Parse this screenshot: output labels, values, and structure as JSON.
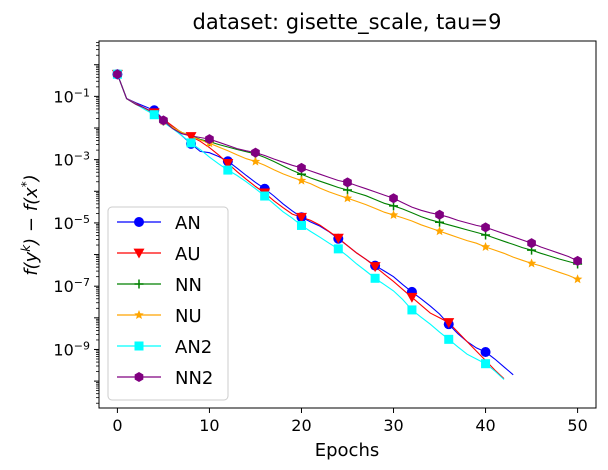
{
  "chart_data": {
    "type": "line",
    "title": "dataset: gisette_scale, tau=9",
    "xlabel": "Epochs",
    "ylabel_parts": [
      "f(y",
      "k",
      ") − f(x",
      "*",
      ")"
    ],
    "xlim": [
      -2,
      52
    ],
    "ylim_exp": [
      -10.85,
      0.75
    ],
    "yscale": "log",
    "x_ticks": [
      0,
      10,
      20,
      30,
      40,
      50
    ],
    "y_ticks": [
      {
        "exp": -1,
        "base": "10",
        "sup": "−1"
      },
      {
        "exp": -3,
        "base": "10",
        "sup": "−3"
      },
      {
        "exp": -5,
        "base": "10",
        "sup": "−5"
      },
      {
        "exp": -7,
        "base": "10",
        "sup": "−7"
      },
      {
        "exp": -9,
        "base": "10",
        "sup": "−9"
      }
    ],
    "legend_position": "lower-left",
    "series": [
      {
        "name": "AN",
        "color": "#0000ff",
        "marker": "circle",
        "x": [
          0,
          1,
          2,
          3,
          4,
          5,
          6,
          7,
          8,
          9,
          10,
          11,
          12,
          13,
          14,
          15,
          16,
          17,
          18,
          19,
          20,
          21,
          22,
          23,
          24,
          25,
          26,
          27,
          28,
          29,
          30,
          31,
          32,
          33,
          34,
          35,
          36,
          37,
          38,
          39,
          40,
          41,
          42,
          43
        ],
        "y_exp": [
          -0.3,
          -1.07,
          -1.2,
          -1.32,
          -1.44,
          -1.72,
          -1.98,
          -2.24,
          -2.5,
          -2.74,
          -2.78,
          -2.9,
          -3.05,
          -3.27,
          -3.5,
          -3.72,
          -3.92,
          -4.15,
          -4.4,
          -4.62,
          -4.82,
          -4.97,
          -5.1,
          -5.28,
          -5.5,
          -5.72,
          -5.95,
          -6.15,
          -6.35,
          -6.52,
          -6.7,
          -6.95,
          -7.18,
          -7.4,
          -7.63,
          -7.88,
          -8.2,
          -8.5,
          -8.75,
          -8.95,
          -9.08,
          -9.3,
          -9.55,
          -9.8
        ],
        "markers_x": [
          0,
          4,
          8,
          12,
          16,
          20,
          24,
          28,
          32,
          36,
          40
        ]
      },
      {
        "name": "AU",
        "color": "#ff0000",
        "marker": "triangle-down",
        "x": [
          0,
          1,
          2,
          3,
          4,
          5,
          6,
          7,
          8,
          9,
          10,
          11,
          12,
          13,
          14,
          15,
          16,
          17,
          18,
          19,
          20,
          21,
          22,
          23,
          24,
          25,
          26,
          27,
          28,
          29,
          30,
          31,
          32,
          33,
          34,
          35,
          36,
          37,
          38,
          39,
          40,
          41,
          42
        ],
        "y_exp": [
          -0.3,
          -1.07,
          -1.22,
          -1.38,
          -1.52,
          -1.72,
          -1.94,
          -2.15,
          -2.27,
          -2.42,
          -2.62,
          -2.85,
          -3.12,
          -3.38,
          -3.62,
          -3.85,
          -4.05,
          -4.3,
          -4.52,
          -4.72,
          -4.82,
          -4.92,
          -5.07,
          -5.27,
          -5.48,
          -5.72,
          -5.95,
          -6.15,
          -6.38,
          -6.62,
          -6.85,
          -7.1,
          -7.35,
          -7.6,
          -7.85,
          -8.0,
          -8.15,
          -8.45,
          -8.75,
          -9.05,
          -9.35,
          -9.65,
          -9.92
        ],
        "markers_x": [
          0,
          4,
          8,
          12,
          16,
          20,
          24,
          28,
          32,
          36
        ]
      },
      {
        "name": "NN",
        "color": "#008000",
        "marker": "plus",
        "x": [
          0,
          1,
          2,
          3,
          4,
          5,
          6,
          7,
          8,
          9,
          10,
          11,
          12,
          13,
          14,
          15,
          16,
          17,
          18,
          19,
          20,
          21,
          22,
          23,
          24,
          25,
          26,
          27,
          28,
          29,
          30,
          31,
          32,
          33,
          34,
          35,
          36,
          37,
          38,
          39,
          40,
          41,
          42,
          43,
          44,
          45,
          46,
          47,
          48,
          49,
          50
        ],
        "y_exp": [
          -0.3,
          -1.07,
          -1.25,
          -1.4,
          -1.57,
          -1.78,
          -1.98,
          -2.14,
          -2.25,
          -2.36,
          -2.43,
          -2.52,
          -2.6,
          -2.68,
          -2.75,
          -2.82,
          -2.93,
          -3.06,
          -3.2,
          -3.34,
          -3.46,
          -3.58,
          -3.68,
          -3.78,
          -3.88,
          -3.96,
          -4.05,
          -4.14,
          -4.26,
          -4.38,
          -4.46,
          -4.56,
          -4.68,
          -4.8,
          -4.9,
          -4.98,
          -5.06,
          -5.14,
          -5.22,
          -5.3,
          -5.38,
          -5.48,
          -5.58,
          -5.68,
          -5.78,
          -5.86,
          -5.96,
          -6.05,
          -6.14,
          -6.22,
          -6.3
        ],
        "markers_x": [
          0,
          5,
          10,
          15,
          20,
          25,
          30,
          35,
          40,
          45,
          50
        ]
      },
      {
        "name": "NU",
        "color": "#ffa500",
        "marker": "star",
        "x": [
          0,
          1,
          2,
          3,
          4,
          5,
          6,
          7,
          8,
          9,
          10,
          11,
          12,
          13,
          14,
          15,
          16,
          17,
          18,
          19,
          20,
          21,
          22,
          23,
          24,
          25,
          26,
          27,
          28,
          29,
          30,
          31,
          32,
          33,
          34,
          35,
          36,
          37,
          38,
          39,
          40,
          41,
          42,
          43,
          44,
          45,
          46,
          47,
          48,
          49,
          50
        ],
        "y_exp": [
          -0.3,
          -1.07,
          -1.25,
          -1.4,
          -1.57,
          -1.78,
          -1.98,
          -2.14,
          -2.26,
          -2.38,
          -2.48,
          -2.6,
          -2.72,
          -2.85,
          -2.97,
          -3.06,
          -3.18,
          -3.32,
          -3.45,
          -3.56,
          -3.66,
          -3.76,
          -3.9,
          -4.02,
          -4.12,
          -4.22,
          -4.32,
          -4.42,
          -4.54,
          -4.66,
          -4.75,
          -4.84,
          -4.94,
          -5.06,
          -5.16,
          -5.26,
          -5.36,
          -5.46,
          -5.56,
          -5.64,
          -5.76,
          -5.86,
          -5.96,
          -6.08,
          -6.18,
          -6.28,
          -6.36,
          -6.46,
          -6.56,
          -6.66,
          -6.78
        ],
        "markers_x": [
          0,
          5,
          10,
          15,
          20,
          25,
          30,
          35,
          40,
          45,
          50
        ]
      },
      {
        "name": "AN2",
        "color": "#00ffff",
        "marker": "square",
        "x": [
          0,
          1,
          2,
          3,
          4,
          5,
          6,
          7,
          8,
          9,
          10,
          11,
          12,
          13,
          14,
          15,
          16,
          17,
          18,
          19,
          20,
          21,
          22,
          23,
          24,
          25,
          26,
          27,
          28,
          29,
          30,
          31,
          32,
          33,
          34,
          35,
          36,
          37,
          38,
          39,
          40,
          41,
          42
        ],
        "y_exp": [
          -0.3,
          -1.07,
          -1.24,
          -1.42,
          -1.58,
          -1.82,
          -2.02,
          -2.24,
          -2.47,
          -2.68,
          -2.92,
          -3.13,
          -3.33,
          -3.5,
          -3.7,
          -3.92,
          -4.15,
          -4.4,
          -4.65,
          -4.85,
          -5.08,
          -5.27,
          -5.45,
          -5.64,
          -5.82,
          -6.05,
          -6.3,
          -6.52,
          -6.75,
          -6.95,
          -7.15,
          -7.42,
          -7.75,
          -7.98,
          -8.2,
          -8.45,
          -8.68,
          -8.92,
          -9.15,
          -9.3,
          -9.45,
          -9.68,
          -9.95
        ],
        "markers_x": [
          0,
          4,
          8,
          12,
          16,
          20,
          24,
          28,
          32,
          36,
          40
        ]
      },
      {
        "name": "NN2",
        "color": "#800080",
        "marker": "hexagon",
        "x": [
          0,
          1,
          2,
          3,
          4,
          5,
          6,
          7,
          8,
          9,
          10,
          11,
          12,
          13,
          14,
          15,
          16,
          17,
          18,
          19,
          20,
          21,
          22,
          23,
          24,
          25,
          26,
          27,
          28,
          29,
          30,
          31,
          32,
          33,
          34,
          35,
          36,
          37,
          38,
          39,
          40,
          41,
          42,
          43,
          44,
          45,
          46,
          47,
          48,
          49,
          50
        ],
        "y_exp": [
          -0.3,
          -1.07,
          -1.25,
          -1.37,
          -1.52,
          -1.76,
          -2.02,
          -2.18,
          -2.25,
          -2.3,
          -2.35,
          -2.45,
          -2.55,
          -2.65,
          -2.72,
          -2.78,
          -2.87,
          -2.98,
          -3.08,
          -3.18,
          -3.26,
          -3.36,
          -3.46,
          -3.56,
          -3.66,
          -3.72,
          -3.82,
          -3.92,
          -4.02,
          -4.12,
          -4.22,
          -4.36,
          -4.5,
          -4.6,
          -4.68,
          -4.74,
          -4.82,
          -4.92,
          -5.0,
          -5.08,
          -5.14,
          -5.24,
          -5.34,
          -5.44,
          -5.54,
          -5.64,
          -5.76,
          -5.86,
          -5.96,
          -6.06,
          -6.2
        ],
        "markers_x": [
          0,
          5,
          10,
          15,
          20,
          25,
          30,
          35,
          40,
          45,
          50
        ]
      }
    ]
  }
}
